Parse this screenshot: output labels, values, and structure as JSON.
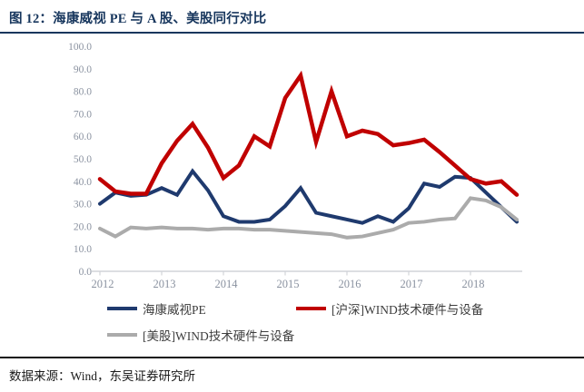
{
  "header": {
    "figure_label": "图 12：",
    "figure_title": "海康威视 PE 与 A 股、美股同行对比",
    "accent_color": "#17365d"
  },
  "footer": {
    "source": "数据来源：Wind，东吴证券研究所"
  },
  "chart_data": {
    "type": "line",
    "title": "",
    "xlabel": "",
    "ylabel": "",
    "ylim": [
      0,
      100
    ],
    "grid": false,
    "legend_position": "bottom",
    "axis_label_color": "#8a92a0",
    "axis_line_color": "#d2d4d8",
    "x_tick_labels": [
      "2012",
      "2013",
      "2014",
      "2015",
      "2016",
      "2017",
      "2018"
    ],
    "y_tick_labels": [
      "0.0",
      "10.0",
      "20.0",
      "30.0",
      "40.0",
      "50.0",
      "60.0",
      "70.0",
      "80.0",
      "90.0",
      "100.0"
    ],
    "x": [
      "2012Q1",
      "2012Q2",
      "2012Q3",
      "2012Q4",
      "2013Q1",
      "2013Q2",
      "2013Q3",
      "2013Q4",
      "2014Q1",
      "2014Q2",
      "2014Q3",
      "2014Q4",
      "2015Q1",
      "2015Q2",
      "2015Q3",
      "2015Q4",
      "2016Q1",
      "2016Q2",
      "2016Q3",
      "2016Q4",
      "2017Q1",
      "2017Q2",
      "2017Q3",
      "2017Q4",
      "2018Q1",
      "2018Q2",
      "2018Q3",
      "2018Q4"
    ],
    "series": [
      {
        "name": "海康威视PE",
        "color": "#1f3a6e",
        "values": [
          30,
          35,
          33.5,
          34,
          37,
          34,
          44.5,
          36,
          24.5,
          22,
          22,
          23,
          29,
          37,
          26,
          24.5,
          23,
          21.5,
          24.5,
          22,
          28,
          39,
          37.5,
          42,
          41.5,
          35,
          28.5,
          22
        ]
      },
      {
        "name": "[沪深]WIND技术硬件与设备",
        "color": "#c00000",
        "values": [
          41,
          35.5,
          34.5,
          34.5,
          48,
          58,
          65.5,
          55,
          41.5,
          47,
          60,
          55.5,
          77,
          87,
          57.5,
          80,
          60,
          62.5,
          61,
          56,
          57,
          58.5,
          53,
          47,
          41,
          39,
          40,
          34
        ]
      },
      {
        "name": "[美股]WIND技术硬件与设备",
        "color": "#ababab",
        "values": [
          19,
          15.5,
          19.5,
          19,
          19.5,
          19,
          19,
          18.5,
          19,
          19,
          18.5,
          18.5,
          18,
          17.5,
          17,
          16.5,
          15,
          15.5,
          17,
          18.5,
          21.5,
          22,
          23,
          23.5,
          32.5,
          31.5,
          28.5,
          23
        ]
      }
    ]
  }
}
